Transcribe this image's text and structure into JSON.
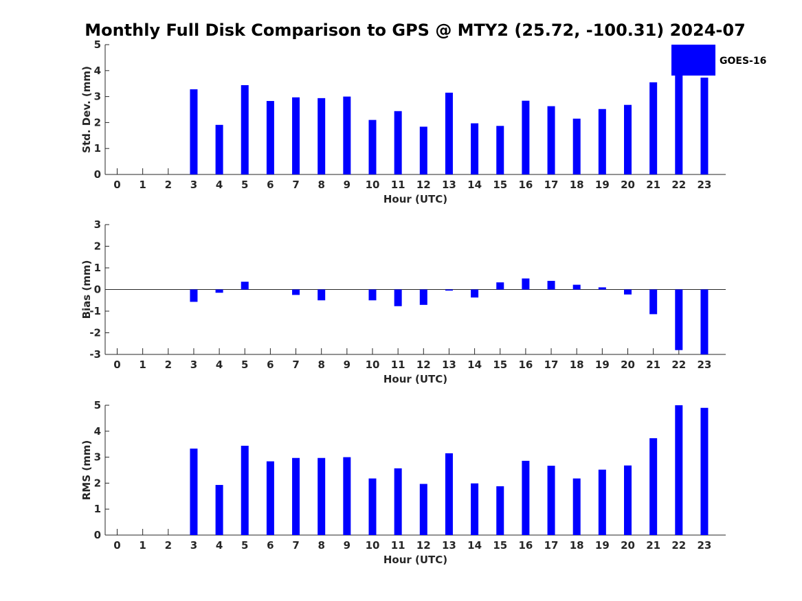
{
  "figure": {
    "title": "Monthly Full Disk Comparison to GPS @ MTY2 (25.72, -100.31) 2024-07"
  },
  "chart_data": [
    {
      "type": "bar",
      "categories": [
        "0",
        "1",
        "2",
        "3",
        "4",
        "5",
        "6",
        "7",
        "8",
        "9",
        "10",
        "11",
        "12",
        "13",
        "14",
        "15",
        "16",
        "17",
        "18",
        "19",
        "20",
        "21",
        "22",
        "23"
      ],
      "series": [
        {
          "name": "GOES-16",
          "color": "#0000ff",
          "values": [
            null,
            null,
            null,
            3.28,
            1.91,
            3.44,
            2.83,
            2.97,
            2.94,
            3.0,
            2.1,
            2.44,
            1.84,
            3.15,
            1.97,
            1.87,
            2.84,
            2.63,
            2.15,
            2.52,
            2.68,
            3.55,
            3.85,
            3.73
          ]
        }
      ],
      "xlabel": "Hour (UTC)",
      "ylabel": "Std. Dev. (mm)",
      "ylim": [
        0,
        5
      ],
      "yticks": [
        "0",
        "1",
        "2",
        "3",
        "4",
        "5"
      ],
      "grid": false,
      "legend": {
        "position": "top-right",
        "entries": [
          "GOES-16"
        ]
      }
    },
    {
      "type": "bar",
      "categories": [
        "0",
        "1",
        "2",
        "3",
        "4",
        "5",
        "6",
        "7",
        "8",
        "9",
        "10",
        "11",
        "12",
        "13",
        "14",
        "15",
        "16",
        "17",
        "18",
        "19",
        "20",
        "21",
        "22",
        "23"
      ],
      "series": [
        {
          "name": "GOES-16",
          "color": "#0000ff",
          "values": [
            null,
            null,
            null,
            -0.57,
            -0.15,
            0.36,
            0.0,
            -0.25,
            -0.5,
            0.0,
            -0.5,
            -0.77,
            -0.71,
            -0.05,
            -0.37,
            0.33,
            0.51,
            0.4,
            0.22,
            0.1,
            -0.23,
            -1.14,
            -2.8,
            -3.0
          ]
        }
      ],
      "xlabel": "Hour (UTC)",
      "ylabel": "Bias (mm)",
      "ylim": [
        -3,
        3
      ],
      "yticks": [
        "-3",
        "-2",
        "-1",
        "0",
        "1",
        "2",
        "3"
      ],
      "zero_line": true,
      "grid": false
    },
    {
      "type": "bar",
      "categories": [
        "0",
        "1",
        "2",
        "3",
        "4",
        "5",
        "6",
        "7",
        "8",
        "9",
        "10",
        "11",
        "12",
        "13",
        "14",
        "15",
        "16",
        "17",
        "18",
        "19",
        "20",
        "21",
        "22",
        "23"
      ],
      "series": [
        {
          "name": "GOES-16",
          "color": "#0000ff",
          "values": [
            null,
            null,
            null,
            3.33,
            1.93,
            3.44,
            2.84,
            2.97,
            2.97,
            3.0,
            2.18,
            2.57,
            1.97,
            3.15,
            1.99,
            1.88,
            2.86,
            2.67,
            2.18,
            2.52,
            2.68,
            3.73,
            5.0,
            4.9
          ]
        }
      ],
      "xlabel": "Hour (UTC)",
      "ylabel": "RMS (mm)",
      "ylim": [
        0,
        5
      ],
      "yticks": [
        "0",
        "1",
        "2",
        "3",
        "4",
        "5"
      ],
      "grid": false
    }
  ]
}
